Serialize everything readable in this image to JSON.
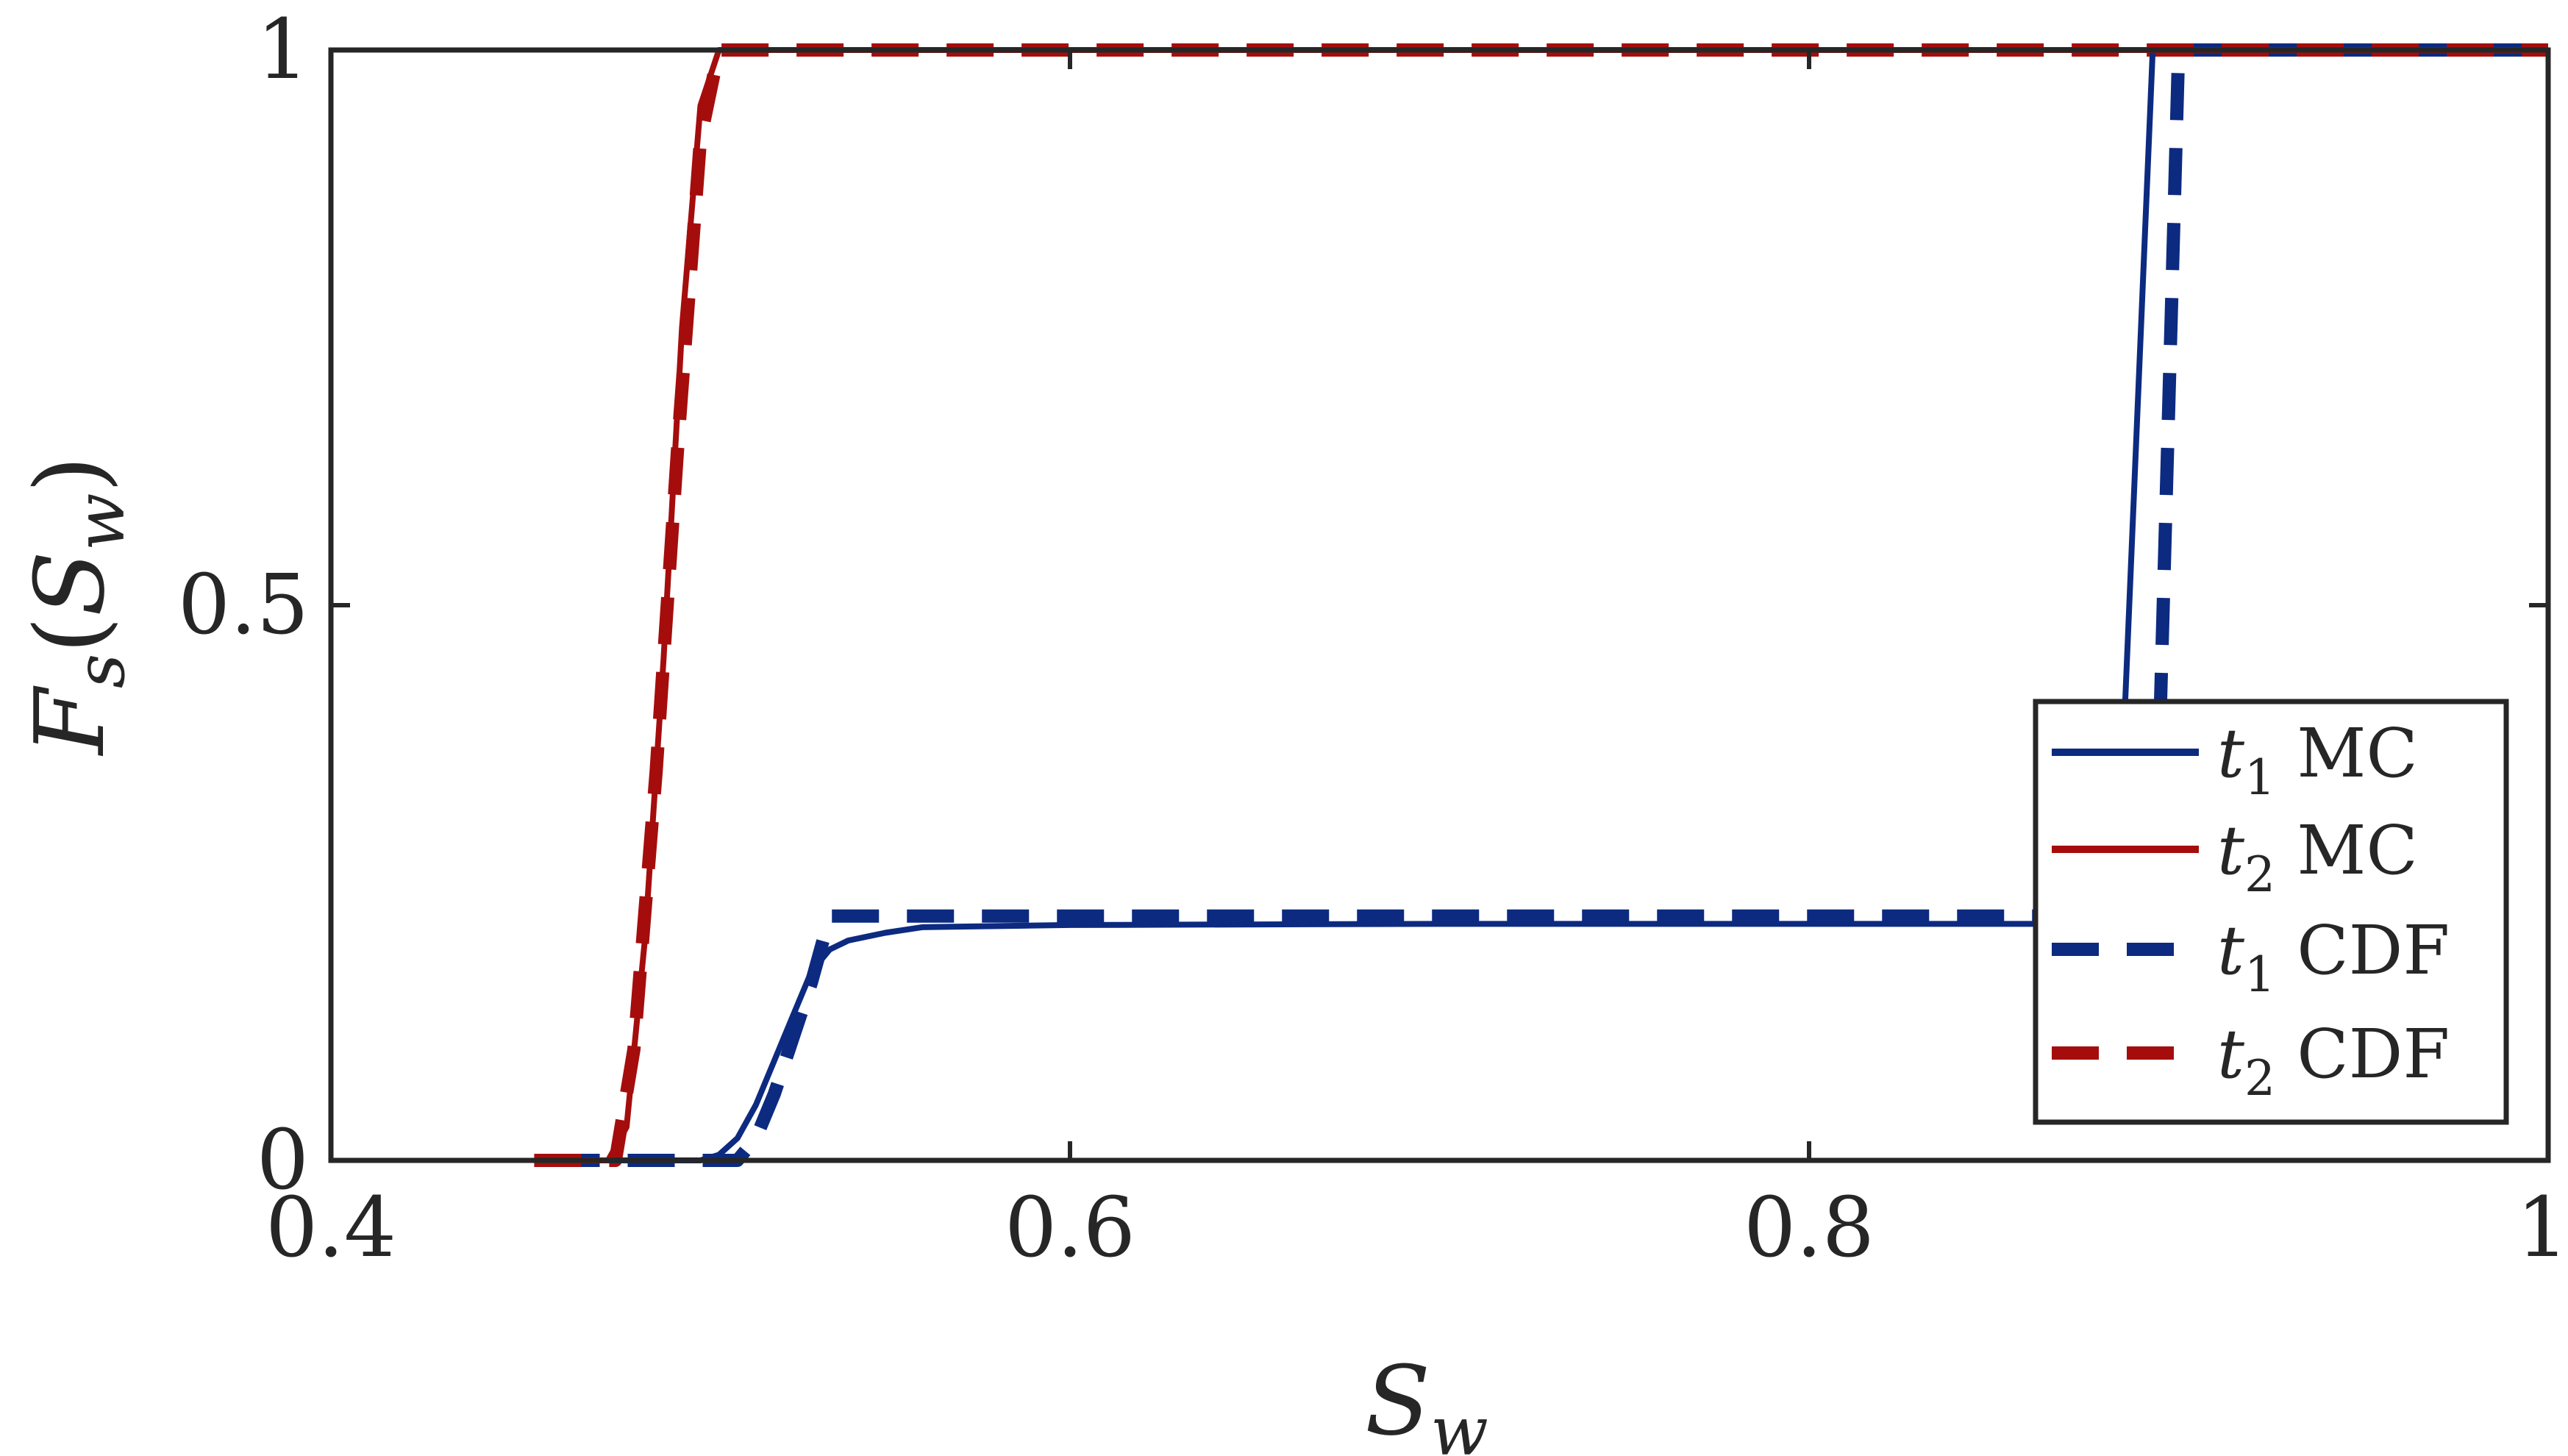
{
  "chart_data": {
    "type": "line",
    "xlabel": "S_w",
    "ylabel": "F_s(S_w)",
    "xlim": [
      0.4,
      1.0
    ],
    "ylim": [
      0,
      1
    ],
    "xticks": [
      {
        "value": 0.4,
        "label": "0.4"
      },
      {
        "value": 0.6,
        "label": "0.6"
      },
      {
        "value": 0.8,
        "label": "0.8"
      },
      {
        "value": 1.0,
        "label": "1"
      }
    ],
    "yticks": [
      {
        "value": 0,
        "label": "0"
      },
      {
        "value": 0.5,
        "label": "0.5"
      },
      {
        "value": 1,
        "label": "1"
      }
    ],
    "grid": false,
    "legend_position": "bottom-right",
    "series": [
      {
        "name": "t1 MC",
        "color": "#0c2a80",
        "style": "solid",
        "x": [
          0.46,
          0.5,
          0.505,
          0.51,
          0.515,
          0.52,
          0.525,
          0.53,
          0.535,
          0.54,
          0.55,
          0.56,
          0.6,
          0.7,
          0.8,
          0.883,
          0.893,
          0.9,
          1.0
        ],
        "y": [
          0,
          0,
          0.005,
          0.02,
          0.05,
          0.09,
          0.13,
          0.17,
          0.19,
          0.198,
          0.205,
          0.21,
          0.212,
          0.213,
          0.213,
          0.213,
          1,
          1,
          1
        ]
      },
      {
        "name": "t2 MC",
        "color": "#a50d0d",
        "style": "solid",
        "x": [
          0.46,
          0.475,
          0.48,
          0.485,
          0.49,
          0.495,
          0.5,
          0.505,
          0.51,
          1.0
        ],
        "y": [
          0,
          0,
          0.03,
          0.2,
          0.45,
          0.75,
          0.95,
          1,
          1,
          1
        ]
      },
      {
        "name": "t1 CDF",
        "color": "#0c2a80",
        "style": "dashed",
        "x": [
          0.46,
          0.51,
          0.515,
          0.52,
          0.525,
          0.53,
          0.535,
          0.886,
          0.888,
          0.895,
          0.9,
          1.0
        ],
        "y": [
          0,
          0,
          0.02,
          0.06,
          0.11,
          0.16,
          0.22,
          0.22,
          0.22,
          0.4,
          1,
          1
        ]
      },
      {
        "name": "t2 CDF",
        "color": "#a50d0d",
        "style": "dashed",
        "x": [
          0.455,
          0.477,
          0.482,
          0.488,
          0.494,
          0.5,
          0.505,
          1.0
        ],
        "y": [
          0,
          0,
          0.1,
          0.35,
          0.65,
          0.92,
          1,
          1
        ]
      }
    ]
  }
}
